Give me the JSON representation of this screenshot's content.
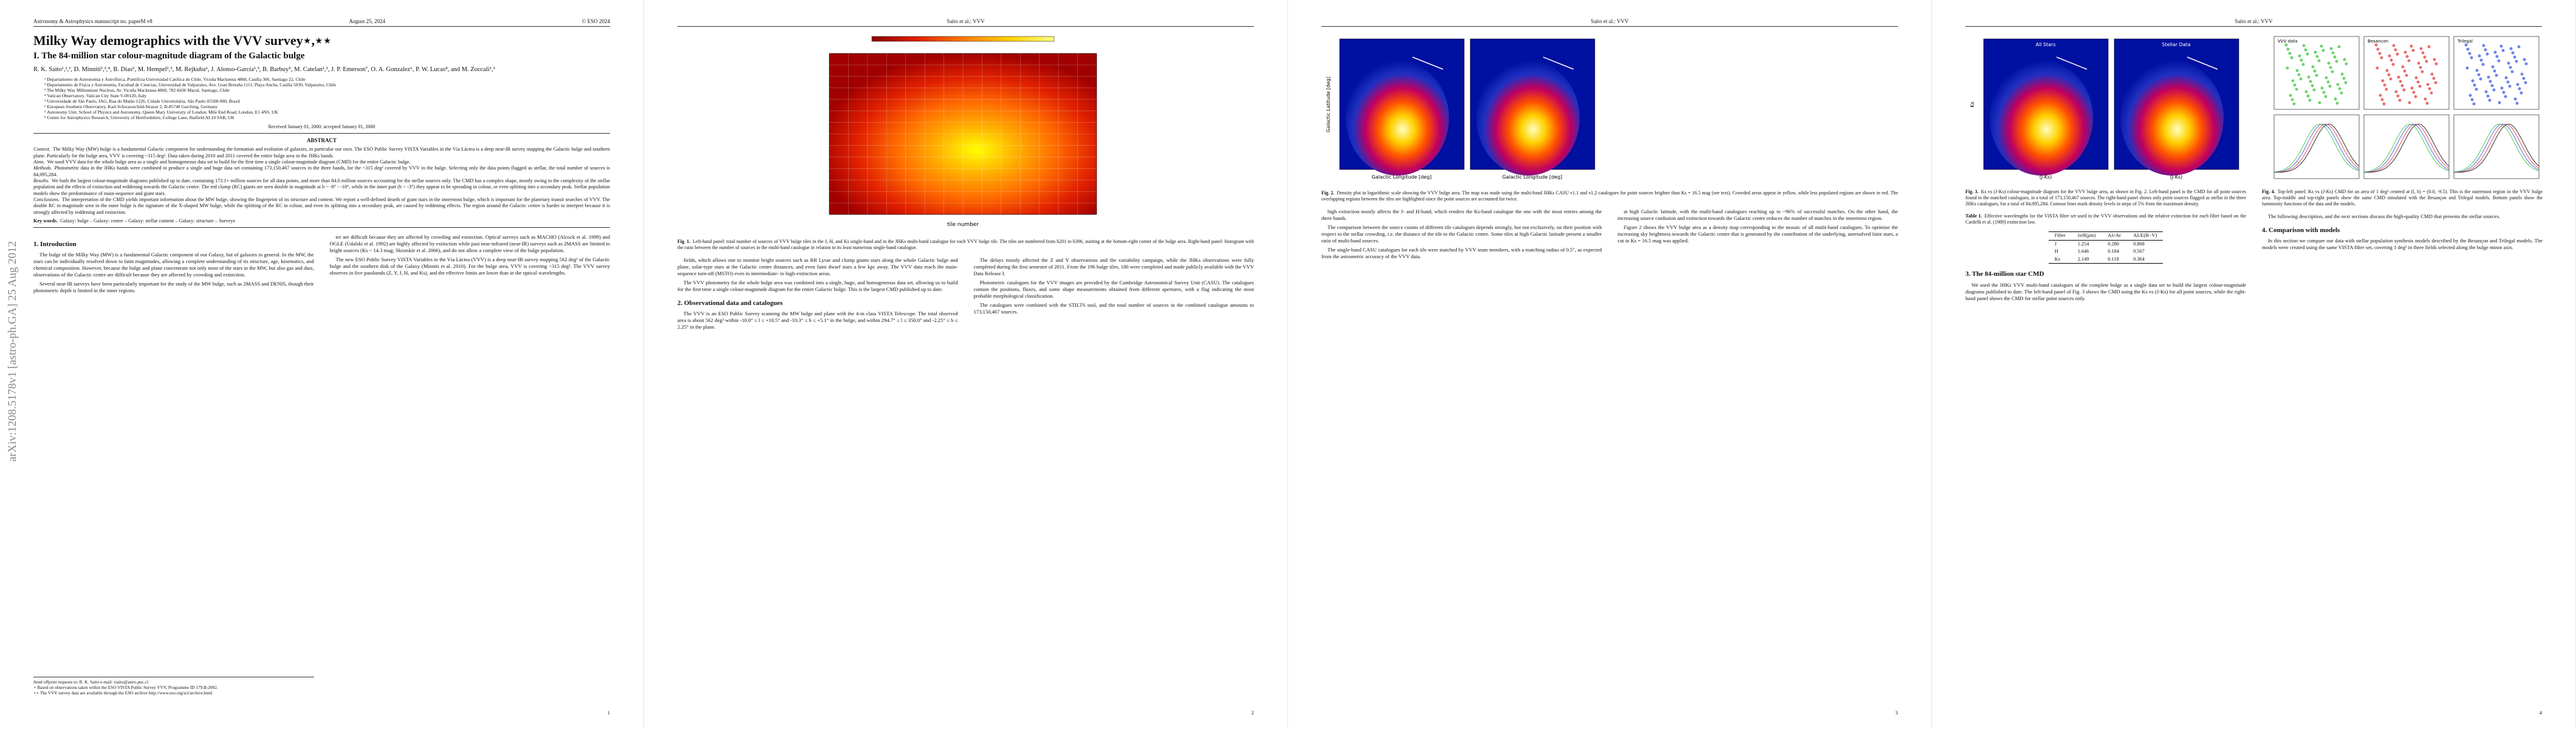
{
  "pages": [
    {
      "header": {
        "left": "Astronomy & Astrophysics manuscript no. paperM v8",
        "date": "August 25, 2024",
        "right": "© ESO 2024"
      },
      "arxiv": "arXiv:1208.5178v1 [astro-ph.GA] 25 Aug 2012",
      "title": "Milky Way demographics with the VVV survey⋆,⋆⋆",
      "subtitle": "I. The 84-million star colour-magnitude diagram of the Galactic bulge",
      "authors": "R. K. Saito¹,²,³, D. Minniti¹,³,⁴, B. Dias⁵, M. Hempel¹,³, M. Rejkuba⁶, J. Alonso-García¹,³, B. Barbuy⁵, M. Catelan¹,³, J. P. Emerson⁷, O. A. Gonzalez⁶, P. W. Lucas⁸, and M. Zoccali¹,³",
      "affiliations": [
        "¹ Departamento de Astronomía y Astrofísica, Pontificia Universidad Católica de Chile, Vicuña Mackenna 4860, Casilla 306, Santiago 22, Chile",
        "² Departamento de Física y Astronomía, Facultad de Ciencias, Universidad de Valparaíso, Ave. Gran Bretaña 1111, Playa Ancha, Casilla 5030, Valparaíso, Chile",
        "³ The Milky Way Millennium Nucleus, Av. Vicuña Mackenna 4860, 782-0436 Macul, Santiago, Chile",
        "⁴ Vatican Observatory, Vatican City State V-00120, Italy",
        "⁵ Universidade de São Paulo, IAG, Rua do Matão 1226, Cidade Universitária, São Paulo 05508-900, Brazil",
        "⁶ European Southern Observatory, Karl-Schwarszchild-Strasse 2, D-85748 Garching, Germany",
        "⁷ Astronomy Unit, School of Physics and Astronomy, Queen Mary University of London, Mile End Road, London, E1 4NS, UK",
        "⁸ Centre for Astrophysics Research, University of Hertfordshire, College Lane, Hatfield AL10 9AB, UK"
      ],
      "received": "Received January 01, 2000; accepted January 01, 2000",
      "abstract": {
        "heading": "ABSTRACT",
        "items": [
          {
            "label": "Context.",
            "text": "The Milky Way (MW) bulge is a fundamental Galactic component for understanding the formation and evolution of galaxies, in particular our own. The ESO Public Survey VISTA Variables in the Vía Láctea is a deep near-IR survey mapping the Galactic bulge and southern plane. Particularly for the bulge area, VVV is covering ~315 deg². Data taken during 2010 and 2011 covered the entire bulge area in the JHKs bands."
          },
          {
            "label": "Aims.",
            "text": "We used VVV data for the whole bulge area as a single and homogeneous data set to build for the first time a single colour-magnitude diagram (CMD) for the entire Galactic bulge."
          },
          {
            "label": "Methods.",
            "text": "Photometric data in the JHKs bands were combined to produce a single and huge data set containing 173,150,467 sources in the three bands, for the ~315 deg² covered by VVV in the bulge. Selecting only the data points flagged as stellar, the total number of sources is 84,095,284."
          },
          {
            "label": "Results.",
            "text": "We built the largest colour-magnitude diagrams published up to date, containing 173.1+ million sources for all data points, and more than 84.0 million sources accounting for the stellar sources only. The CMD has a complex shape, mostly owing to the complexity of the stellar population and the effects of extinction and reddening towards the Galactic centre. The red clump (RC) giants are seen double in magnitude at b ~ -8° - -10°, while in the inner part (b > -3°) they appear to be spreading in colour, or even splitting into a secondary peak. Stellar population models show the predominance of main-sequence and giant stars."
          },
          {
            "label": "Conclusions.",
            "text": "The interpretation of the CMD yields important information about the MW bulge, showing the fingerprint of its structure and content. We report a well-defined dearth of giant stars in the innermost bulge, which is important for the planetary transit searches of VVV. The double RC in magnitude seen in the outer bulge is the signature of the X-shaped MW bulge, while the splitting of the RC in colour, and even its splitting into a secondary peak, are caused by reddening effects. The region around the Galactic centre is harder to interpret because it is strongly affected by reddening and extinction."
          }
        ]
      },
      "keywords": {
        "label": "Key words.",
        "text": "Galaxy: bulge – Galaxy: center – Galaxy: stellar content – Galaxy: structure – Surveys"
      },
      "columns": [
        [
          {
            "heading": "1. Introduction"
          },
          {
            "text": "The bulge of the Milky Way (MW) is a fundamental Galactic component of our Galaxy, but of galaxies in general. In the MW, the stars can be individually resolved down to faint magnitudes, allowing a complete understanding of its structure, age, kinematics, and chemical composition. However, because the bulge and plane concentrate not only most of the stars in the MW, but also gas and dust, observations of the Galactic centre are difficult because they are affected by crowding and extinction."
          },
          {
            "text": "Several near-IR surveys have been particularly important for the study of the MW bulge, such as 2MASS and DENIS, though their photometric depth is limited in the inner regions."
          }
        ],
        [
          {
            "text": "ter are difficult because they are affected by crowding and extinction. Optical surveys such as MACHO (Alcock et al. 1999) and OGLE (Udalski et al. 1992) are highly affected by extinction while past near-infrared (near-IR) surveys such as 2MASS are limited to bright sources (Ks ~ 14.3 mag; Skrutskie et al. 2006), and do not allow a complete view of the bulge population."
          },
          {
            "text": "The new ESO Public Survey VISTA Variables in the Vía Láctea (VVV) is a deep near-IR survey mapping 562 deg² of the Galactic bulge and the southern disk of the Galaxy (Minniti et al. 2010). For the bulge area, VVV is covering ~315 deg². The VVV survey observes in five passbands (Z, Y, J, H, and Ks), and the effective limits are lower than in the optical wavelengths."
          }
        ]
      ],
      "footnotes": [
        "Send offprint requests to: R. K. Saito e-mail: rsaito@astro.puc.cl",
        "⋆ Based on observations taken within the ESO VISTA Public Survey VVV, Programme ID 179.B-2002.",
        "⋆⋆ The VVV survey data are available through the ESO archive http://www.eso.org/sci/archive.html"
      ],
      "page_number": "1"
    },
    {
      "header": {
        "center": "Saito et al.: VVV"
      },
      "figure": {
        "label": "Fig. 1.",
        "caption": "Left-hand panel: total number of sources of VVV bulge tiles in the J, H, and Ks single-band and in the JHKs multi-band catalogue for each VVV bulge tile. The tiles are numbered from b201 to b396, starting at the bottom-right corner of the bulge area. Right-hand panel: histogram with the ratio between the number of sources in the multi-band catalogue in relation to its least numerous single-band catalogue.",
        "xlabel": "tile number"
      },
      "columns": [
        [
          {
            "text": "fields, which allows one to monitor bright sources such as RR Lyrae and clump giants stars along the whole Galactic bulge and plane, solar-type stars at the Galactic centre distances, and even faint dwarf stars a few kpc away. The VVV data reach the main-sequence turn-off (MSTO) even in intermediate- to high-extinction areas."
          },
          {
            "text": "The VVV photometry for the whole bulge area was combined into a single, huge, and homogeneous data set, allowing us to build for the first time a single colour-magnitude diagram for the entire Galactic bulge. This is the largest CMD published up to date."
          },
          {
            "heading": "2. Observational data and catalogues"
          },
          {
            "text": "The VVV is an ESO Public Survey scanning the MW bulge and plane with the 4-m class VISTA Telescope. The total observed area is about 562 deg² within -10.0° ≤ l ≤ +10.5° and -10.3° ≤ b ≤ +5.1° in the bulge, and within 294.7° ≤ l ≤ 350.0° and -2.25° ≤ b ≤ 2.25° in the plane."
          }
        ],
        [
          {
            "text": "The delays mostly affected the Z and Y observations and the variability campaign, while the JHKs observations were fully completed during the first semester of 2011. From the 196 bulge tiles, 180 were completed and made publicly available with the VVV Data Release I."
          },
          {
            "text": "Photometric catalogues for the VVV images are provided by the Cambridge Astronomical Survey Unit (CASU). The catalogues contain the positions, fluxes, and some shape measurements obtained from different apertures, with a flag indicating the most probable morphological classification."
          },
          {
            "text": "The catalogues were combined with the STILTS tool, and the total number of sources in the combined catalogue amounts to 173,150,467 sources."
          }
        ]
      ],
      "page_number": "2"
    },
    {
      "header": {
        "center": "Saito et al.: VVV"
      },
      "figure": {
        "label": "Fig. 2.",
        "caption": "Density plot in logarithmic scale showing the VVV bulge area. The map was made using the multi-band JHKs CASU v1.1 and v1.2 catalogues for point sources brighter than Ks = 16.5 mag (see text). Crowded areas appear in yellow, while less populated regions are shown in red. The overlapping regions between the tiles are highlighted since the point sources are accounted for twice.",
        "xlabel": "Galactic Longitude [deg]",
        "ylabel": "Galactic Latitude [deg]",
        "colorbar": "x10² sources deg⁻²"
      },
      "columns": [
        [
          {
            "text": "high extinction mostly affects the J- and H-band, which renders the Ks-band catalogue the one with the most entries among the three bands."
          },
          {
            "text": "The comparison between the source counts of different tile catalogues depends strongly, but not exclusively, on their position with respect to the stellar crowding, i.e. the distance of the tile to the Galactic centre. Some tiles at high Galactic latitude present a smaller ratio of multi-band sources."
          },
          {
            "text": "The single-band CASU catalogues for each tile were matched by VVV team members, with a matching radius of 0.5″, as expected from the astrometric accuracy of the VVV data."
          }
        ],
        [
          {
            "text": "at high Galactic latitude, with the multi-band catalogues reaching up to ~96% of successful matches. On the other hand, the increasing source confusion and extinction towards the Galactic centre reduces the number of matches in the innermost region."
          },
          {
            "text": "Figure 2 shows the VVV bulge area as a density map corresponding to the mosaic of all multi-band catalogues. To optimise the increasing sky brightness towards the Galactic centre that is generated by the contribution of the underlying, unresolved faint stars, a cut in Ks = 16.5 mag was applied."
          }
        ]
      ],
      "page_number": "3"
    },
    {
      "header": {
        "center": "Saito et al.: VVV"
      },
      "columns": [
        [
          {
            "figure": {
              "label": "Fig. 3.",
              "caption": "Ks vs (J-Ks) colour-magnitude diagram for the VVV bulge area, as shown in Fig. 2. Left-hand panel is the CMD for all point sources found in the matched catalogues, in a total of 173,150,467 sources. The right-hand panel shows only point sources flagged as stellar in the three JHKs catalogues, for a total of 84,095,284. Contour lines mark density levels in steps of 5% from the maximum density.",
              "panels": [
                "All Stars",
                "Stellar Data"
              ],
              "xlabel": "(J-Ks)",
              "ylabel": "Ks"
            }
          },
          {
            "table": {
              "label": "Table 1.",
              "caption": "Effective wavelengths for the VISTA filter set used in the VVV observations and the relative extinction for each filter based on the Cardelli et al. (1989) extinction law.",
              "head": [
                "Filter",
                "λeff(μm)",
                "Aλ/Av",
                "Aλ/E(B−V)"
              ],
              "rows": [
                [
                  "J",
                  "1.254",
                  "0.280",
                  "0.868"
                ],
                [
                  "H",
                  "1.646",
                  "0.184",
                  "0.567"
                ],
                [
                  "Ks",
                  "2.149",
                  "0.118",
                  "0.364"
                ]
              ]
            }
          },
          {
            "heading": "3. The 84-million star CMD"
          },
          {
            "text": "We used the JHKs VVV multi-band catalogues of the complete bulge as a single data set to build the largest colour-magnitude diagrams published to date. The left-hand panel of Fig. 3 shows the CMD using the Ks vs (J-Ks) for all point sources, while the right-hand panel shows the CMD for stellar point sources only."
          }
        ],
        [
          {
            "figure": {
              "label": "Fig. 4.",
              "caption": "Top-left panel: Ks vs (J-Ks) CMD for an area of 1 deg² centred at (l, b) = (0.0, -9.5). This is the outermost region in the VVV bulge area. Top-middle and top-right panels show the same CMD simulated with the Besançon and Trilegal models. Bottom panels show the luminosity functions of the data and the models.",
              "panels": [
                "VVV data",
                "Besancon",
                "Trilegal"
              ]
            }
          },
          {
            "text": "The following description, and the next sections discuss the high-quality CMD that presents the stellar sources."
          },
          {
            "heading": "4. Comparison with models"
          },
          {
            "text": "In this section we compare our data with stellar population synthesis models described by the Besançon and Trilegal models. The models were created using the same VISTA filter set, covering 1 deg² in three fields selected along the bulge minor axis."
          }
        ]
      ],
      "page_number": "4"
    }
  ]
}
